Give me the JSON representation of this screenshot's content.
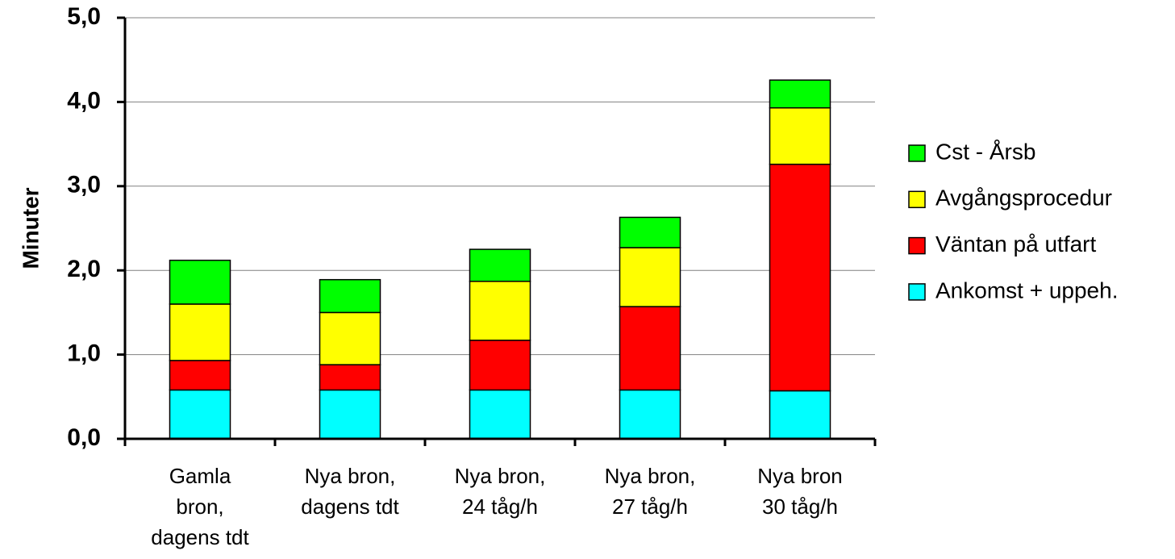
{
  "chart_data": {
    "type": "stacked_bar",
    "y_label": "Minuter",
    "categories": [
      "Gamla\nbron,\ndagens tdt",
      "Nya bron,\ndagens tdt",
      "Nya bron,\n24 tåg/h",
      "Nya bron,\n27 tåg/h",
      "Nya bron\n30 tåg/h"
    ],
    "series": [
      {
        "name": "Ankomst + uppeh.",
        "color": "#00ffff",
        "values": [
          0.58,
          0.58,
          0.58,
          0.58,
          0.57
        ]
      },
      {
        "name": "Väntan på utfart",
        "color": "#ff0000",
        "values": [
          0.35,
          0.3,
          0.59,
          0.99,
          2.69
        ]
      },
      {
        "name": "Avgångsprocedur",
        "color": "#ffff00",
        "values": [
          0.67,
          0.62,
          0.7,
          0.7,
          0.67
        ]
      },
      {
        "name": "Cst - Årsb",
        "color": "#00ff00",
        "values": [
          0.52,
          0.39,
          0.38,
          0.36,
          0.33
        ]
      }
    ],
    "ylim": [
      0,
      5
    ],
    "yticks": [
      {
        "value": 0,
        "label": "0,0"
      },
      {
        "value": 1,
        "label": "1,0"
      },
      {
        "value": 2,
        "label": "2,0"
      },
      {
        "value": 3,
        "label": "3,0"
      },
      {
        "value": 4,
        "label": "4,0"
      },
      {
        "value": 5,
        "label": "5,0"
      }
    ],
    "grid": true,
    "legend": "right"
  }
}
